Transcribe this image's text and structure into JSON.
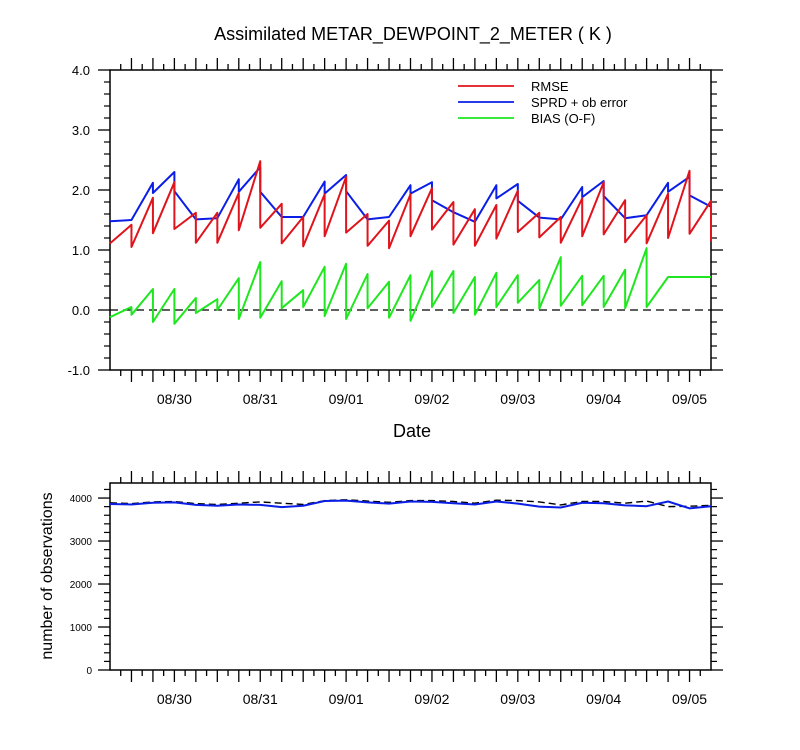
{
  "chart_data": [
    {
      "type": "line",
      "title": "Assimilated METAR_DEWPOINT_2_METER ( K )",
      "xlabel": "Date",
      "ylabel": "",
      "x_tick_labels": [
        "08/30",
        "08/31",
        "09/01",
        "09/02",
        "09/03",
        "09/04",
        "09/05"
      ],
      "y_tick_labels": [
        "-1.0",
        "0.0",
        "1.0",
        "2.0",
        "3.0",
        "4.0"
      ],
      "ylim": [
        -1.0,
        4.0
      ],
      "xlim_days": [
        -0.75,
        6.25
      ],
      "legend_position": "top-right",
      "reference_line": {
        "y": 0.0,
        "style": "dashed"
      },
      "series": [
        {
          "name": "RMSE",
          "color": "#e0141c",
          "points": [
            [
              -0.75,
              1.11
            ],
            [
              -0.5,
              1.42
            ],
            [
              -0.5,
              1.05
            ],
            [
              -0.25,
              1.87
            ],
            [
              -0.25,
              1.28
            ],
            [
              0.0,
              2.13
            ],
            [
              0.0,
              1.35
            ],
            [
              0.25,
              1.62
            ],
            [
              0.25,
              1.12
            ],
            [
              0.5,
              1.62
            ],
            [
              0.5,
              1.12
            ],
            [
              0.75,
              1.95
            ],
            [
              0.75,
              1.33
            ],
            [
              1.0,
              2.48
            ],
            [
              1.0,
              1.37
            ],
            [
              1.25,
              1.77
            ],
            [
              1.25,
              1.11
            ],
            [
              1.5,
              1.55
            ],
            [
              1.5,
              1.06
            ],
            [
              1.75,
              1.93
            ],
            [
              1.75,
              1.23
            ],
            [
              2.0,
              2.22
            ],
            [
              2.0,
              1.29
            ],
            [
              2.25,
              1.6
            ],
            [
              2.25,
              1.07
            ],
            [
              2.5,
              1.49
            ],
            [
              2.5,
              1.03
            ],
            [
              2.75,
              1.93
            ],
            [
              2.75,
              1.23
            ],
            [
              3.0,
              2.03
            ],
            [
              3.0,
              1.34
            ],
            [
              3.25,
              1.8
            ],
            [
              3.25,
              1.09
            ],
            [
              3.5,
              1.68
            ],
            [
              3.5,
              1.07
            ],
            [
              3.75,
              1.75
            ],
            [
              3.75,
              1.19
            ],
            [
              4.0,
              1.99
            ],
            [
              4.0,
              1.3
            ],
            [
              4.25,
              1.62
            ],
            [
              4.25,
              1.21
            ],
            [
              4.5,
              1.55
            ],
            [
              4.5,
              1.12
            ],
            [
              4.75,
              1.86
            ],
            [
              4.75,
              1.23
            ],
            [
              5.0,
              2.13
            ],
            [
              5.0,
              1.26
            ],
            [
              5.25,
              1.83
            ],
            [
              5.25,
              1.13
            ],
            [
              5.5,
              1.58
            ],
            [
              5.5,
              1.11
            ],
            [
              5.75,
              1.94
            ],
            [
              5.75,
              1.2
            ],
            [
              6.0,
              2.32
            ],
            [
              6.0,
              1.27
            ],
            [
              6.25,
              1.82
            ],
            [
              6.25,
              1.14
            ]
          ]
        },
        {
          "name": "SPRD + ob error",
          "color": "#0a1ee6",
          "points": [
            [
              -0.75,
              1.48
            ],
            [
              -0.5,
              1.5
            ],
            [
              -0.25,
              2.12
            ],
            [
              -0.25,
              1.95
            ],
            [
              0.0,
              2.3
            ],
            [
              0.0,
              1.98
            ],
            [
              0.25,
              1.51
            ],
            [
              0.5,
              1.53
            ],
            [
              0.75,
              2.18
            ],
            [
              0.75,
              1.97
            ],
            [
              1.0,
              2.38
            ],
            [
              1.0,
              1.97
            ],
            [
              1.25,
              1.55
            ],
            [
              1.5,
              1.55
            ],
            [
              1.75,
              2.14
            ],
            [
              1.75,
              1.94
            ],
            [
              2.0,
              2.25
            ],
            [
              2.0,
              1.98
            ],
            [
              2.25,
              1.51
            ],
            [
              2.5,
              1.55
            ],
            [
              2.75,
              2.08
            ],
            [
              2.75,
              1.94
            ],
            [
              3.0,
              2.13
            ],
            [
              3.0,
              1.83
            ],
            [
              3.25,
              1.63
            ],
            [
              3.5,
              1.47
            ],
            [
              3.75,
              2.08
            ],
            [
              3.75,
              1.86
            ],
            [
              4.0,
              2.1
            ],
            [
              4.0,
              1.82
            ],
            [
              4.25,
              1.54
            ],
            [
              4.5,
              1.51
            ],
            [
              4.75,
              2.05
            ],
            [
              4.75,
              1.88
            ],
            [
              5.0,
              2.15
            ],
            [
              5.0,
              1.9
            ],
            [
              5.25,
              1.53
            ],
            [
              5.5,
              1.58
            ],
            [
              5.75,
              2.12
            ],
            [
              5.75,
              1.97
            ],
            [
              6.0,
              2.22
            ],
            [
              6.0,
              1.91
            ],
            [
              6.25,
              1.72
            ]
          ]
        },
        {
          "name": "BIAS (O-F)",
          "color": "#20e620",
          "points": [
            [
              -0.75,
              -0.12
            ],
            [
              -0.5,
              0.05
            ],
            [
              -0.5,
              -0.08
            ],
            [
              -0.25,
              0.35
            ],
            [
              -0.25,
              -0.2
            ],
            [
              0.0,
              0.35
            ],
            [
              0.0,
              -0.23
            ],
            [
              0.25,
              0.2
            ],
            [
              0.25,
              -0.05
            ],
            [
              0.5,
              0.18
            ],
            [
              0.5,
              0.0
            ],
            [
              0.75,
              0.53
            ],
            [
              0.75,
              -0.15
            ],
            [
              1.0,
              0.8
            ],
            [
              1.0,
              -0.13
            ],
            [
              1.25,
              0.48
            ],
            [
              1.25,
              0.03
            ],
            [
              1.5,
              0.33
            ],
            [
              1.5,
              0.05
            ],
            [
              1.75,
              0.72
            ],
            [
              1.75,
              -0.1
            ],
            [
              2.0,
              0.77
            ],
            [
              2.0,
              -0.15
            ],
            [
              2.25,
              0.6
            ],
            [
              2.25,
              0.03
            ],
            [
              2.5,
              0.47
            ],
            [
              2.5,
              -0.13
            ],
            [
              2.75,
              0.58
            ],
            [
              2.75,
              -0.18
            ],
            [
              3.0,
              0.65
            ],
            [
              3.0,
              0.05
            ],
            [
              3.25,
              0.65
            ],
            [
              3.25,
              -0.05
            ],
            [
              3.5,
              0.55
            ],
            [
              3.5,
              -0.08
            ],
            [
              3.75,
              0.62
            ],
            [
              3.75,
              0.05
            ],
            [
              4.0,
              0.58
            ],
            [
              4.0,
              0.12
            ],
            [
              4.25,
              0.5
            ],
            [
              4.25,
              0.02
            ],
            [
              4.5,
              0.88
            ],
            [
              4.5,
              0.07
            ],
            [
              4.75,
              0.57
            ],
            [
              4.75,
              0.08
            ],
            [
              5.0,
              0.57
            ],
            [
              5.0,
              0.05
            ],
            [
              5.25,
              0.67
            ],
            [
              5.25,
              0.03
            ],
            [
              5.5,
              1.03
            ],
            [
              5.5,
              0.05
            ],
            [
              5.75,
              0.55
            ],
            [
              6.0,
              0.55
            ],
            [
              6.25,
              0.55
            ]
          ]
        }
      ]
    },
    {
      "type": "line",
      "title": "",
      "xlabel": "",
      "ylabel": "number of observations",
      "x_tick_labels": [
        "08/30",
        "08/31",
        "09/01",
        "09/02",
        "09/03",
        "09/04",
        "09/05"
      ],
      "y_tick_labels": [
        "0",
        "1000",
        "2000",
        "3000",
        "4000"
      ],
      "ylim": [
        0,
        4350
      ],
      "xlim_days": [
        -0.75,
        6.25
      ],
      "series": [
        {
          "name": "",
          "style": "dashed",
          "color": "#000000",
          "points": [
            [
              -0.75,
              3890
            ],
            [
              -0.5,
              3870
            ],
            [
              -0.25,
              3910
            ],
            [
              0.0,
              3920
            ],
            [
              0.25,
              3870
            ],
            [
              0.5,
              3850
            ],
            [
              0.75,
              3880
            ],
            [
              1.0,
              3910
            ],
            [
              1.25,
              3880
            ],
            [
              1.5,
              3850
            ],
            [
              1.75,
              3940
            ],
            [
              2.0,
              3960
            ],
            [
              2.25,
              3930
            ],
            [
              2.5,
              3900
            ],
            [
              2.75,
              3940
            ],
            [
              3.0,
              3940
            ],
            [
              3.25,
              3920
            ],
            [
              3.5,
              3880
            ],
            [
              3.75,
              3950
            ],
            [
              4.0,
              3940
            ],
            [
              4.25,
              3910
            ],
            [
              4.5,
              3840
            ],
            [
              4.75,
              3920
            ],
            [
              5.0,
              3920
            ],
            [
              5.25,
              3880
            ],
            [
              5.5,
              3930
            ],
            [
              5.75,
              3800
            ],
            [
              6.0,
              3810
            ],
            [
              6.25,
              3830
            ]
          ]
        },
        {
          "name": "",
          "style": "solid",
          "color": "#0a1ee6",
          "points": [
            [
              -0.75,
              3860
            ],
            [
              -0.5,
              3850
            ],
            [
              -0.25,
              3890
            ],
            [
              0.0,
              3900
            ],
            [
              0.25,
              3840
            ],
            [
              0.5,
              3820
            ],
            [
              0.75,
              3850
            ],
            [
              1.0,
              3840
            ],
            [
              1.25,
              3790
            ],
            [
              1.5,
              3820
            ],
            [
              1.75,
              3930
            ],
            [
              2.0,
              3940
            ],
            [
              2.25,
              3900
            ],
            [
              2.5,
              3870
            ],
            [
              2.75,
              3920
            ],
            [
              3.0,
              3910
            ],
            [
              3.25,
              3880
            ],
            [
              3.5,
              3850
            ],
            [
              3.75,
              3920
            ],
            [
              4.0,
              3870
            ],
            [
              4.25,
              3800
            ],
            [
              4.5,
              3780
            ],
            [
              4.75,
              3890
            ],
            [
              5.0,
              3880
            ],
            [
              5.25,
              3830
            ],
            [
              5.5,
              3810
            ],
            [
              5.75,
              3920
            ],
            [
              6.0,
              3760
            ],
            [
              6.25,
              3810
            ]
          ]
        }
      ]
    }
  ]
}
